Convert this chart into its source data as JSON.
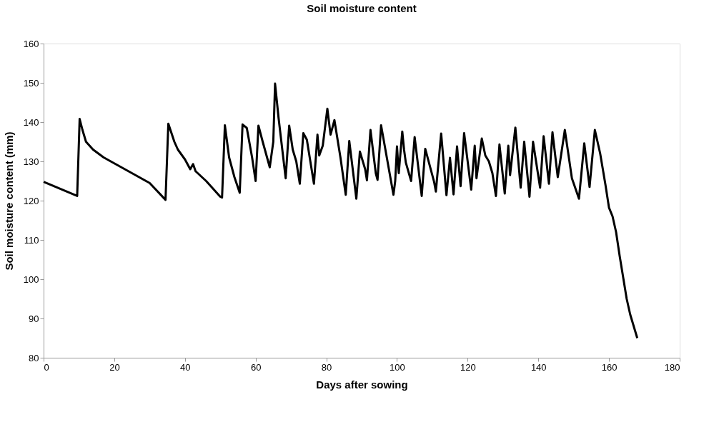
{
  "chart_data": {
    "type": "line",
    "title": "Soil moisture content",
    "xlabel": "Days after sowing",
    "ylabel": "Soil moisture content (mm)",
    "xlim": [
      0,
      180
    ],
    "xticks": [
      0,
      20,
      40,
      60,
      80,
      100,
      120,
      140,
      160,
      180
    ],
    "ylim": [
      80,
      160
    ],
    "yticks": [
      80,
      90,
      100,
      110,
      120,
      130,
      140,
      150,
      160
    ],
    "grid": false,
    "marker": "none",
    "line_style": "solid",
    "series": [
      {
        "color": "#000000",
        "x": [
          0,
          9.5,
          10.2,
          11,
          12,
          14,
          17,
          20,
          25,
          30,
          34.5,
          35.3,
          37,
          38,
          40,
          41.5,
          42.3,
          43,
          46,
          50,
          50.5,
          51.3,
          52.5,
          54,
          55.5,
          56.3,
          57.5,
          59,
          60,
          60.8,
          62,
          64,
          65,
          65.5,
          66.5,
          68.5,
          69.5,
          70.5,
          71.5,
          72.5,
          73.5,
          74.5,
          76.5,
          77.5,
          78,
          79,
          80.3,
          81.2,
          82.3,
          84,
          85.5,
          86.5,
          88.5,
          89.5,
          91,
          91.5,
          92.5,
          94,
          94.5,
          95.5,
          99,
          99.5,
          100,
          100.5,
          101.5,
          102,
          102.5,
          104,
          105,
          107,
          108,
          110.5,
          111,
          112.5,
          114,
          115,
          116,
          117,
          118,
          119,
          121,
          122,
          122.5,
          124,
          125,
          126,
          127,
          128,
          129,
          130.5,
          131.5,
          132,
          133.5,
          135,
          136,
          137.5,
          138.5,
          140.5,
          141.5,
          143,
          144,
          145.5,
          147.5,
          149.5,
          151.5,
          153,
          154.5,
          156,
          157.5,
          159,
          160,
          161,
          162,
          163,
          165,
          166,
          168
        ],
        "values": [
          124.8,
          121.2,
          140.8,
          138,
          135,
          133,
          131,
          129.5,
          127,
          124.5,
          120.2,
          139.6,
          135,
          133,
          130.5,
          128,
          129.3,
          127.5,
          125,
          121,
          120.8,
          139.2,
          131,
          126,
          122,
          139.4,
          138.5,
          131,
          125,
          139.1,
          135,
          128.5,
          135,
          149.8,
          141,
          125.7,
          139.1,
          133,
          130,
          124.3,
          137.2,
          135.5,
          124.3,
          136.8,
          131.5,
          134,
          143.4,
          136.8,
          140.5,
          131,
          121.5,
          135.2,
          120.5,
          132.5,
          128,
          125.2,
          138,
          127,
          125.3,
          139.2,
          121.5,
          125,
          133.8,
          127,
          137.6,
          133,
          129.7,
          125,
          136.2,
          121.2,
          133.2,
          124.8,
          122.3,
          137.1,
          121.4,
          130.9,
          121.6,
          133.8,
          123.7,
          137.2,
          122.8,
          134,
          125.7,
          135.8,
          131.5,
          130,
          127,
          121.2,
          134.3,
          121.8,
          134,
          126.5,
          138.6,
          123.3,
          135,
          121,
          135,
          123.3,
          136.4,
          124.3,
          137.4,
          126,
          138,
          125.7,
          120.5,
          134.6,
          123.5,
          138,
          132,
          124,
          118.2,
          116,
          112,
          106,
          95,
          91,
          85
        ]
      }
    ]
  }
}
